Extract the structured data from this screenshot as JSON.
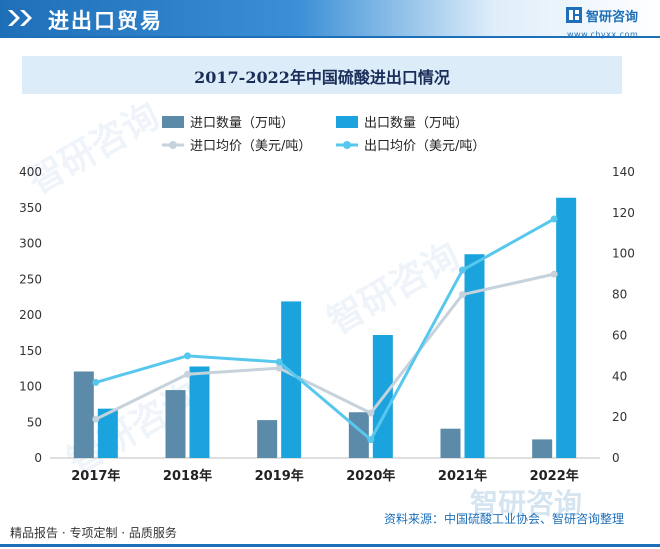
{
  "header": {
    "title": "进出口贸易"
  },
  "brand": {
    "name": "智研咨询",
    "url": "www.chyxx.com"
  },
  "watermark": {
    "text": "智研咨询"
  },
  "footer": {
    "left": "精品报告 · 专项定制 · 品质服务",
    "source": "资料来源：中国硫酸工业协会、智研咨询整理"
  },
  "colors": {
    "import_qty": "#5b8ba8",
    "export_qty": "#1aa3dc",
    "import_price": "#c6d2dc",
    "export_price": "#58c7ee"
  },
  "chart_data": {
    "type": "bar",
    "title": "2017-2022年中国硫酸进出口情况",
    "categories": [
      "2017年",
      "2018年",
      "2019年",
      "2020年",
      "2021年",
      "2022年"
    ],
    "y_left": {
      "min": 0,
      "max": 400,
      "step": 50,
      "ticks": [
        "0",
        "50",
        "100",
        "150",
        "200",
        "250",
        "300",
        "350",
        "400"
      ]
    },
    "y_right": {
      "min": 0,
      "max": 140,
      "step": 20,
      "ticks": [
        "0",
        "20",
        "40",
        "60",
        "80",
        "100",
        "120",
        "140"
      ]
    },
    "legend_position": "top",
    "grid": false,
    "series": [
      {
        "name": "进口数量（万吨）",
        "type": "bar",
        "axis": "left",
        "values": [
          121,
          95,
          53,
          64,
          41,
          26
        ]
      },
      {
        "name": "出口数量（万吨）",
        "type": "bar",
        "axis": "left",
        "values": [
          69,
          128,
          219,
          172,
          285,
          364
        ]
      },
      {
        "name": "进口均价（美元/吨）",
        "type": "line",
        "axis": "right",
        "values": [
          19,
          41,
          44,
          22,
          80,
          90
        ]
      },
      {
        "name": "出口均价（美元/吨）",
        "type": "line",
        "axis": "right",
        "values": [
          37,
          50,
          47,
          9,
          92,
          117
        ]
      }
    ]
  }
}
